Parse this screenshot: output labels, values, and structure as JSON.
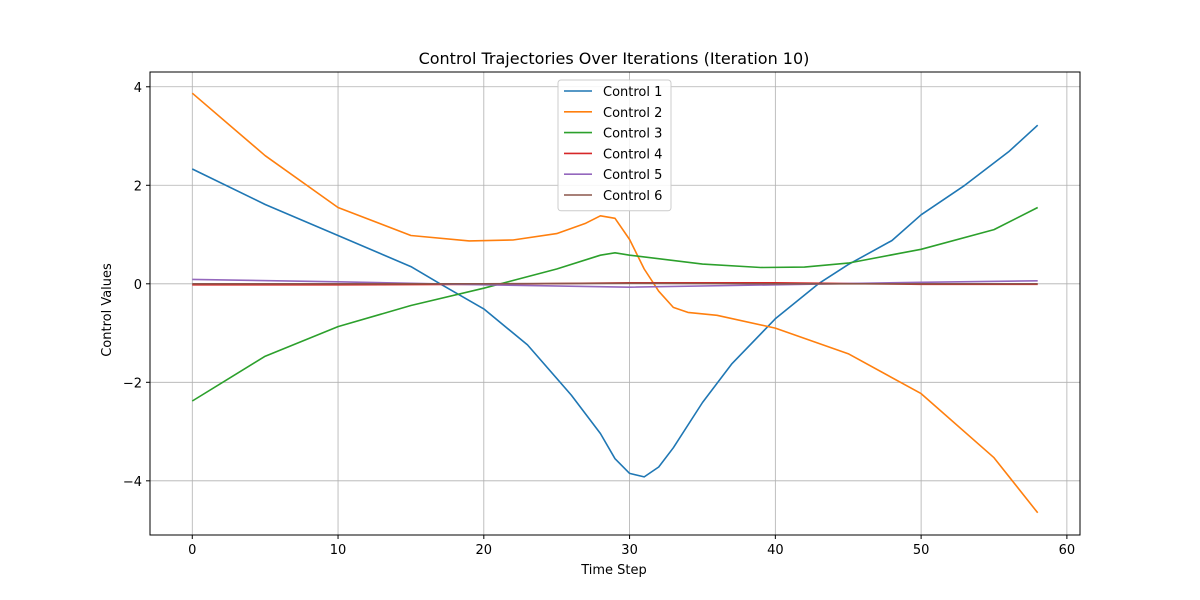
{
  "chart_data": {
    "type": "line",
    "title": "Control Trajectories Over Iterations (Iteration 10)",
    "xlabel": "Time Step",
    "ylabel": "Control Values",
    "xlim": [
      -2.9,
      60.9
    ],
    "ylim": [
      -5.1,
      4.3
    ],
    "xticks": [
      0,
      10,
      20,
      30,
      40,
      50,
      60
    ],
    "xtick_labels": [
      "0",
      "10",
      "20",
      "30",
      "40",
      "50",
      "60"
    ],
    "yticks": [
      -4,
      -2,
      0,
      2,
      4
    ],
    "ytick_labels": [
      "−4",
      "−2",
      "0",
      "2",
      "4"
    ],
    "grid": true,
    "legend_position": "upper-center",
    "series": [
      {
        "name": "Control 1",
        "color": "#1f77b4",
        "points": [
          [
            0,
            2.33
          ],
          [
            5,
            1.61
          ],
          [
            10,
            0.98
          ],
          [
            15,
            0.35
          ],
          [
            17,
            0.0
          ],
          [
            20,
            -0.51
          ],
          [
            23,
            -1.24
          ],
          [
            26,
            -2.26
          ],
          [
            28,
            -3.04
          ],
          [
            29,
            -3.55
          ],
          [
            30,
            -3.85
          ],
          [
            31,
            -3.92
          ],
          [
            32,
            -3.72
          ],
          [
            33,
            -3.33
          ],
          [
            35,
            -2.41
          ],
          [
            37,
            -1.63
          ],
          [
            40,
            -0.71
          ],
          [
            43,
            0.01
          ],
          [
            45,
            0.39
          ],
          [
            48,
            0.88
          ],
          [
            50,
            1.4
          ],
          [
            53,
            2.0
          ],
          [
            56,
            2.68
          ],
          [
            58,
            3.22
          ]
        ]
      },
      {
        "name": "Control 2",
        "color": "#ff7f0e",
        "points": [
          [
            0,
            3.87
          ],
          [
            5,
            2.6
          ],
          [
            10,
            1.55
          ],
          [
            15,
            0.98
          ],
          [
            19,
            0.87
          ],
          [
            22,
            0.89
          ],
          [
            25,
            1.02
          ],
          [
            27,
            1.23
          ],
          [
            28,
            1.38
          ],
          [
            29,
            1.33
          ],
          [
            30,
            0.9
          ],
          [
            31,
            0.3
          ],
          [
            32,
            -0.15
          ],
          [
            33,
            -0.48
          ],
          [
            34,
            -0.58
          ],
          [
            36,
            -0.64
          ],
          [
            40,
            -0.9
          ],
          [
            45,
            -1.42
          ],
          [
            50,
            -2.23
          ],
          [
            55,
            -3.53
          ],
          [
            58,
            -4.65
          ]
        ]
      },
      {
        "name": "Control 3",
        "color": "#2ca02c",
        "points": [
          [
            0,
            -2.38
          ],
          [
            5,
            -1.47
          ],
          [
            10,
            -0.87
          ],
          [
            15,
            -0.44
          ],
          [
            20,
            -0.09
          ],
          [
            25,
            0.3
          ],
          [
            28,
            0.58
          ],
          [
            29,
            0.63
          ],
          [
            30,
            0.58
          ],
          [
            35,
            0.4
          ],
          [
            39,
            0.33
          ],
          [
            42,
            0.34
          ],
          [
            45,
            0.42
          ],
          [
            50,
            0.7
          ],
          [
            55,
            1.1
          ],
          [
            58,
            1.55
          ]
        ]
      },
      {
        "name": "Control 4",
        "color": "#d62728",
        "points": [
          [
            0,
            -0.02
          ],
          [
            10,
            -0.02
          ],
          [
            20,
            -0.01
          ],
          [
            30,
            0.02
          ],
          [
            33,
            0.02
          ],
          [
            40,
            0.02
          ],
          [
            50,
            -0.01
          ],
          [
            58,
            -0.01
          ]
        ]
      },
      {
        "name": "Control 5",
        "color": "#9467bd",
        "points": [
          [
            0,
            0.09
          ],
          [
            10,
            0.04
          ],
          [
            20,
            -0.02
          ],
          [
            30,
            -0.07
          ],
          [
            40,
            -0.02
          ],
          [
            50,
            0.03
          ],
          [
            58,
            0.06
          ]
        ]
      },
      {
        "name": "Control 6",
        "color": "#8c564b",
        "points": [
          [
            0,
            0.0
          ],
          [
            10,
            0.0
          ],
          [
            20,
            0.0
          ],
          [
            30,
            0.01
          ],
          [
            40,
            0.0
          ],
          [
            50,
            0.0
          ],
          [
            58,
            0.0
          ]
        ]
      }
    ]
  }
}
